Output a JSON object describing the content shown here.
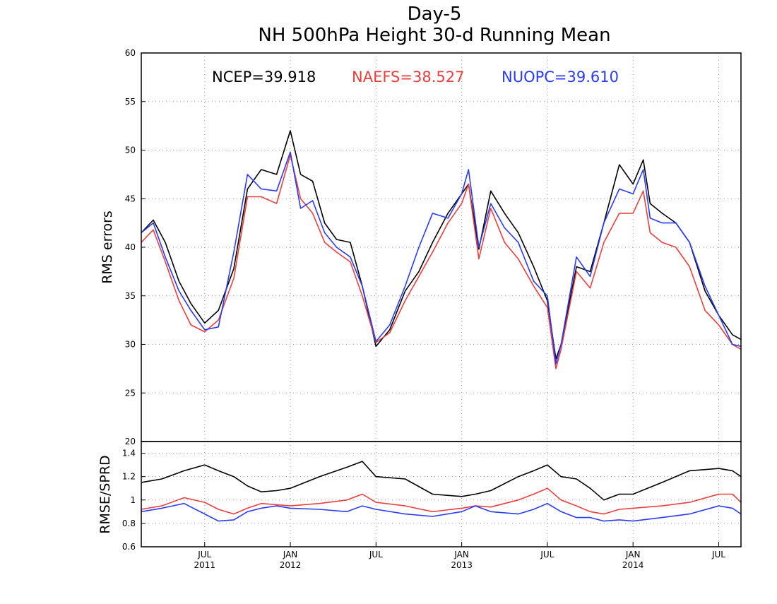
{
  "chart_data": [
    {
      "type": "line",
      "title": "Day-5",
      "subtitle": "NH 500hPa Height 30-d Running Mean",
      "ylabel": "RMS errors",
      "xlabel": "",
      "ylim": [
        20,
        60
      ],
      "yticks": [
        "20",
        "25",
        "30",
        "35",
        "40",
        "45",
        "50",
        "55",
        "60"
      ],
      "grid": true,
      "legend_position": "top",
      "x_months_since": "2011-01",
      "legend": [
        {
          "text": "NCEP=39.918",
          "color": "#000000"
        },
        {
          "text": "NAEFS=38.527",
          "color": "#e8403f"
        },
        {
          "text": "NUOPC=39.610",
          "color": "#2a3cf0"
        }
      ],
      "series": [
        {
          "name": "NCEP",
          "color": "#000000",
          "x": [
            2011.13,
            2011.2,
            2011.27,
            2011.35,
            2011.42,
            2011.5,
            2011.58,
            2011.67,
            2011.75,
            2011.83,
            2011.92,
            2012.0,
            2012.06,
            2012.13,
            2012.2,
            2012.27,
            2012.35,
            2012.42,
            2012.5,
            2012.58,
            2012.67,
            2012.75,
            2012.83,
            2012.92,
            2013.0,
            2013.04,
            2013.1,
            2013.17,
            2013.25,
            2013.33,
            2013.42,
            2013.5,
            2013.55,
            2013.58,
            2013.67,
            2013.75,
            2013.83,
            2013.92,
            2014.0,
            2014.06,
            2014.1,
            2014.17,
            2014.25,
            2014.33,
            2014.42,
            2014.5,
            2014.58,
            2014.63
          ],
          "y": [
            41.5,
            42.8,
            40.5,
            36.5,
            34.2,
            32.2,
            33.5,
            37.8,
            46.0,
            48.0,
            47.5,
            52.0,
            47.5,
            46.8,
            42.5,
            40.8,
            40.5,
            36.0,
            29.8,
            31.5,
            35.5,
            37.5,
            40.5,
            43.5,
            45.5,
            46.5,
            39.8,
            45.8,
            43.5,
            41.5,
            38.0,
            34.5,
            28.5,
            30.0,
            38.0,
            37.5,
            42.5,
            48.5,
            46.5,
            49.0,
            44.5,
            43.5,
            42.5,
            40.5,
            35.5,
            33.0,
            31.0,
            30.5
          ]
        },
        {
          "name": "NAEFS",
          "color": "#e8403f",
          "x": [
            2011.13,
            2011.2,
            2011.27,
            2011.35,
            2011.42,
            2011.5,
            2011.58,
            2011.67,
            2011.75,
            2011.83,
            2011.92,
            2012.0,
            2012.06,
            2012.13,
            2012.2,
            2012.27,
            2012.35,
            2012.42,
            2012.5,
            2012.58,
            2012.67,
            2012.75,
            2012.83,
            2012.92,
            2013.0,
            2013.04,
            2013.1,
            2013.17,
            2013.25,
            2013.33,
            2013.42,
            2013.5,
            2013.55,
            2013.58,
            2013.67,
            2013.75,
            2013.83,
            2013.92,
            2014.0,
            2014.06,
            2014.1,
            2014.17,
            2014.25,
            2014.33,
            2014.42,
            2014.5,
            2014.58,
            2014.63
          ],
          "y": [
            40.5,
            41.8,
            38.5,
            34.5,
            32.0,
            31.3,
            32.5,
            36.8,
            45.2,
            45.2,
            44.5,
            49.5,
            45.0,
            43.5,
            40.5,
            39.5,
            38.5,
            35.0,
            30.2,
            31.2,
            34.5,
            37.0,
            39.5,
            42.5,
            44.5,
            46.5,
            38.8,
            44.0,
            40.5,
            38.8,
            36.0,
            33.8,
            27.5,
            29.5,
            37.5,
            35.8,
            40.5,
            43.5,
            43.5,
            45.8,
            41.5,
            40.5,
            40.0,
            38.0,
            33.5,
            32.0,
            30.0,
            29.5
          ]
        },
        {
          "name": "NUOPC",
          "color": "#2a3cf0",
          "x": [
            2011.13,
            2011.2,
            2011.27,
            2011.35,
            2011.42,
            2011.5,
            2011.58,
            2011.67,
            2011.75,
            2011.83,
            2011.92,
            2012.0,
            2012.06,
            2012.13,
            2012.2,
            2012.27,
            2012.35,
            2012.42,
            2012.5,
            2012.58,
            2012.67,
            2012.75,
            2012.83,
            2012.92,
            2013.0,
            2013.04,
            2013.1,
            2013.17,
            2013.25,
            2013.33,
            2013.42,
            2013.5,
            2013.55,
            2013.58,
            2013.67,
            2013.75,
            2013.83,
            2013.92,
            2014.0,
            2014.06,
            2014.1,
            2014.17,
            2014.25,
            2014.33,
            2014.42,
            2014.5,
            2014.58,
            2014.63
          ],
          "y": [
            41.5,
            42.5,
            39.0,
            35.5,
            33.5,
            31.5,
            31.8,
            39.5,
            47.5,
            46.0,
            45.8,
            49.8,
            44.0,
            44.8,
            41.5,
            40.0,
            39.0,
            36.0,
            30.3,
            32.0,
            36.0,
            40.0,
            43.5,
            43.0,
            45.5,
            48.0,
            40.0,
            44.5,
            42.0,
            40.5,
            36.5,
            35.0,
            28.0,
            30.0,
            39.0,
            37.0,
            42.5,
            46.0,
            45.5,
            48.0,
            43.0,
            42.5,
            42.5,
            40.5,
            36.0,
            33.0,
            30.0,
            29.8
          ]
        }
      ]
    },
    {
      "type": "line",
      "title": "",
      "ylabel": "RMSE/SPRD",
      "ylim": [
        0.6,
        1.5
      ],
      "yticks": [
        "0.6",
        "0.8",
        "1",
        "1.2",
        "1.4"
      ],
      "grid": true,
      "x_tick_labels": [
        {
          "month": "JUL",
          "year": "2011"
        },
        {
          "month": "JAN",
          "year": "2012"
        },
        {
          "month": "JUL",
          "year": ""
        },
        {
          "month": "JAN",
          "year": "2013"
        },
        {
          "month": "JUL",
          "year": ""
        },
        {
          "month": "JAN",
          "year": "2014"
        },
        {
          "month": "JUL",
          "year": ""
        }
      ],
      "series": [
        {
          "name": "NCEP",
          "color": "#000000",
          "x": [
            2011.13,
            2011.25,
            2011.38,
            2011.5,
            2011.58,
            2011.67,
            2011.75,
            2011.83,
            2011.92,
            2012.0,
            2012.17,
            2012.33,
            2012.42,
            2012.5,
            2012.67,
            2012.83,
            2013.0,
            2013.08,
            2013.17,
            2013.33,
            2013.42,
            2013.5,
            2013.58,
            2013.67,
            2013.75,
            2013.83,
            2013.92,
            2014.0,
            2014.17,
            2014.33,
            2014.5,
            2014.58,
            2014.63
          ],
          "y": [
            1.15,
            1.18,
            1.25,
            1.3,
            1.25,
            1.2,
            1.12,
            1.07,
            1.08,
            1.1,
            1.2,
            1.28,
            1.33,
            1.2,
            1.18,
            1.05,
            1.03,
            1.05,
            1.08,
            1.2,
            1.25,
            1.3,
            1.2,
            1.18,
            1.1,
            1.0,
            1.05,
            1.05,
            1.15,
            1.25,
            1.27,
            1.25,
            1.2
          ]
        },
        {
          "name": "NAEFS",
          "color": "#e8403f",
          "x": [
            2011.13,
            2011.25,
            2011.38,
            2011.5,
            2011.58,
            2011.67,
            2011.75,
            2011.83,
            2011.92,
            2012.0,
            2012.17,
            2012.33,
            2012.42,
            2012.5,
            2012.67,
            2012.83,
            2013.0,
            2013.08,
            2013.17,
            2013.33,
            2013.42,
            2013.5,
            2013.58,
            2013.67,
            2013.75,
            2013.83,
            2013.92,
            2014.0,
            2014.17,
            2014.33,
            2014.5,
            2014.58,
            2014.63
          ],
          "y": [
            0.92,
            0.95,
            1.02,
            0.98,
            0.92,
            0.88,
            0.93,
            0.97,
            0.96,
            0.95,
            0.97,
            1.0,
            1.05,
            0.98,
            0.95,
            0.9,
            0.93,
            0.95,
            0.94,
            1.0,
            1.05,
            1.1,
            1.0,
            0.95,
            0.9,
            0.88,
            0.92,
            0.93,
            0.95,
            0.98,
            1.05,
            1.05,
            0.98
          ]
        },
        {
          "name": "NUOPC",
          "color": "#2a3cf0",
          "x": [
            2011.13,
            2011.25,
            2011.38,
            2011.5,
            2011.58,
            2011.67,
            2011.75,
            2011.83,
            2011.92,
            2012.0,
            2012.17,
            2012.33,
            2012.42,
            2012.5,
            2012.67,
            2012.83,
            2013.0,
            2013.08,
            2013.17,
            2013.33,
            2013.42,
            2013.5,
            2013.58,
            2013.67,
            2013.75,
            2013.83,
            2013.92,
            2014.0,
            2014.17,
            2014.33,
            2014.5,
            2014.58,
            2014.63
          ],
          "y": [
            0.9,
            0.93,
            0.97,
            0.88,
            0.82,
            0.83,
            0.9,
            0.93,
            0.95,
            0.93,
            0.92,
            0.9,
            0.95,
            0.92,
            0.88,
            0.86,
            0.9,
            0.95,
            0.9,
            0.88,
            0.92,
            0.97,
            0.9,
            0.85,
            0.85,
            0.82,
            0.83,
            0.82,
            0.85,
            0.88,
            0.95,
            0.93,
            0.88
          ]
        }
      ]
    }
  ]
}
